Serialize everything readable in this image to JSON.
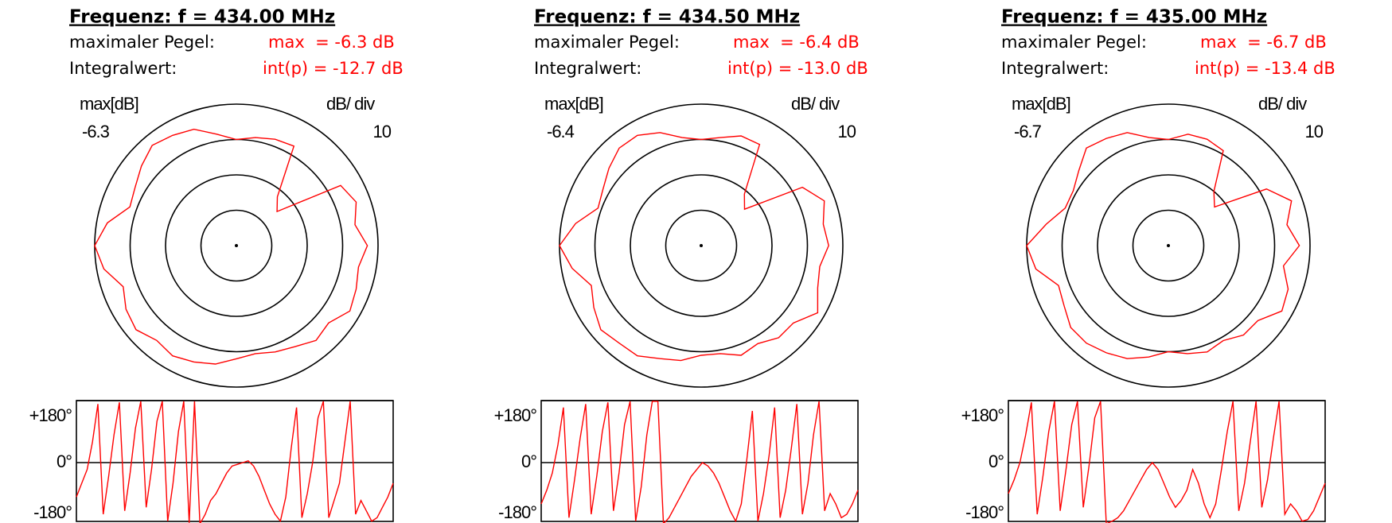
{
  "panels": [
    {
      "title": "Frequenz: f = 434.00 MHz",
      "max_label": "maximaler Pegel:",
      "max_text": "max  = -6.3 dB",
      "int_label": "Integralwert:",
      "int_text": "int(p) = -12.7 dB",
      "scale_label": "max[dB]",
      "scale_value": -6.3,
      "div_label": "dB/ div",
      "div_value": 10,
      "color": "#ff0000",
      "pattern": {
        "type": "polar",
        "angles": [
          0,
          10,
          20,
          30,
          40,
          50,
          60,
          70,
          80,
          90,
          100,
          110,
          120,
          130,
          140,
          150,
          160,
          170,
          180,
          190,
          200,
          210,
          220,
          230,
          240,
          250,
          260,
          270,
          280,
          290,
          300,
          310,
          320,
          330,
          340,
          350
        ],
        "values": [
          -10,
          -9,
          -8,
          -7.5,
          -22,
          -25,
          -6,
          -4,
          -6,
          -3,
          -5,
          -4,
          -3,
          -6,
          -5,
          -7,
          -8,
          -9,
          -8,
          -6,
          -5,
          -4,
          -5,
          -3,
          -4,
          -6,
          -2,
          0,
          -3,
          -8,
          -7,
          -5,
          -3,
          -4,
          -5,
          -8
        ],
        "rlim": [
          -40,
          0
        ],
        "rticks": [
          -30,
          -20,
          -10,
          0
        ]
      },
      "phase": {
        "type": "line",
        "values": [
          -100,
          -60,
          -20,
          60,
          170,
          -150,
          -40,
          80,
          175,
          -140,
          -30,
          100,
          178,
          -130,
          -20,
          120,
          178,
          -170,
          -60,
          90,
          178,
          -175,
          178,
          -178,
          -150,
          -110,
          -90,
          -60,
          -30,
          -10,
          -5,
          0,
          5,
          -10,
          -40,
          -80,
          -120,
          -150,
          -170,
          -100,
          40,
          160,
          -160,
          -90,
          0,
          130,
          178,
          -160,
          -110,
          -60,
          60,
          178,
          -150,
          -110,
          -140,
          -170,
          -160,
          -130,
          -100,
          -60
        ],
        "ylim": [
          -180,
          180
        ],
        "yticks": [
          {
            "value": 180,
            "label": "+180°"
          },
          {
            "value": 0,
            "label": "0°"
          },
          {
            "value": -180,
            "label": "-180°"
          }
        ]
      }
    },
    {
      "title": "Frequenz: f = 434.50 MHz",
      "max_label": "maximaler Pegel:",
      "max_text": "max  = -6.4 dB",
      "int_label": "Integralwert:",
      "int_text": "int(p) = -13.0 dB",
      "scale_label": "max[dB]",
      "scale_value": -6.4,
      "div_label": "dB/ div",
      "div_value": 10,
      "color": "#ff0000",
      "pattern": {
        "type": "polar",
        "angles": [
          0,
          10,
          20,
          30,
          40,
          50,
          60,
          70,
          80,
          90,
          100,
          110,
          120,
          130,
          140,
          150,
          160,
          170,
          180,
          190,
          200,
          210,
          220,
          230,
          240,
          250,
          260,
          270,
          280,
          290,
          300,
          310,
          320,
          330,
          340,
          350
        ],
        "values": [
          -10,
          -9,
          -7,
          -7,
          -21,
          -24,
          -7,
          -3,
          -5,
          -4,
          -6,
          -5,
          -2,
          -6,
          -6,
          -8,
          -7,
          -9,
          -9,
          -7,
          -6,
          -4,
          -4,
          -3,
          -5,
          -7,
          -3,
          0,
          -4,
          -9,
          -8,
          -6,
          -4,
          -4,
          -6,
          -9
        ],
        "rlim": [
          -40,
          0
        ],
        "rticks": [
          -30,
          -20,
          -10,
          0
        ]
      },
      "phase": {
        "type": "line",
        "values": [
          -120,
          -80,
          -30,
          50,
          160,
          -160,
          -50,
          70,
          170,
          -150,
          -40,
          90,
          175,
          -140,
          -30,
          110,
          178,
          -170,
          -70,
          80,
          178,
          178,
          -178,
          -160,
          -130,
          -100,
          -70,
          -40,
          -20,
          0,
          -10,
          -30,
          -60,
          -100,
          -140,
          -170,
          -120,
          10,
          150,
          -170,
          -90,
          20,
          160,
          -160,
          -80,
          40,
          170,
          -150,
          -60,
          80,
          178,
          -140,
          -90,
          -120,
          -160,
          -150,
          -120,
          -80
        ],
        "ylim": [
          -180,
          180
        ],
        "yticks": [
          {
            "value": 180,
            "label": "+180°"
          },
          {
            "value": 0,
            "label": "0°"
          },
          {
            "value": -180,
            "label": "-180°"
          }
        ]
      }
    },
    {
      "title": "Frequenz: f = 435.00 MHz",
      "max_label": "maximaler Pegel:",
      "max_text": "max  = -6.7 dB",
      "int_label": "Integralwert:",
      "int_text": "int(p) = -13.4 dB",
      "scale_label": "max[dB]",
      "scale_value": -6.7,
      "div_label": "dB/ div",
      "div_value": 10,
      "color": "#ff0000",
      "pattern": {
        "type": "polar",
        "angles": [
          0,
          10,
          20,
          30,
          40,
          50,
          60,
          70,
          80,
          90,
          100,
          110,
          120,
          130,
          140,
          150,
          160,
          170,
          180,
          190,
          200,
          210,
          220,
          230,
          240,
          250,
          260,
          270,
          280,
          290,
          300,
          310,
          320,
          330,
          340,
          350
        ],
        "values": [
          -10,
          -8,
          -8,
          -9,
          -20,
          -23,
          -8,
          -3,
          -6,
          -3,
          -7,
          -4,
          -3,
          -7,
          -7,
          -9,
          -8,
          -9,
          -10,
          -8,
          -6,
          -5,
          -4,
          -4,
          -6,
          -7,
          -2,
          0,
          -5,
          -9,
          -9,
          -7,
          -4,
          -5,
          -6,
          -9
        ],
        "rlim": [
          -40,
          0
        ],
        "rticks": [
          -30,
          -20,
          -10,
          0
        ]
      },
      "phase": {
        "type": "line",
        "values": [
          -90,
          -50,
          0,
          80,
          175,
          -150,
          -40,
          90,
          178,
          -140,
          -20,
          110,
          178,
          -130,
          -10,
          130,
          178,
          -178,
          -170,
          -160,
          -140,
          -110,
          -80,
          -50,
          -20,
          0,
          -20,
          -60,
          -100,
          -130,
          -110,
          -80,
          -20,
          -60,
          -120,
          -160,
          -120,
          -20,
          90,
          178,
          -140,
          -60,
          60,
          178,
          -130,
          -50,
          70,
          178,
          -150,
          -120,
          -140,
          -170,
          -165,
          -140,
          -100,
          -60
        ],
        "ylim": [
          -180,
          180
        ],
        "yticks": [
          {
            "value": 180,
            "label": "+180°"
          },
          {
            "value": 0,
            "label": "0°"
          },
          {
            "value": -180,
            "label": "-180°"
          }
        ]
      }
    }
  ]
}
